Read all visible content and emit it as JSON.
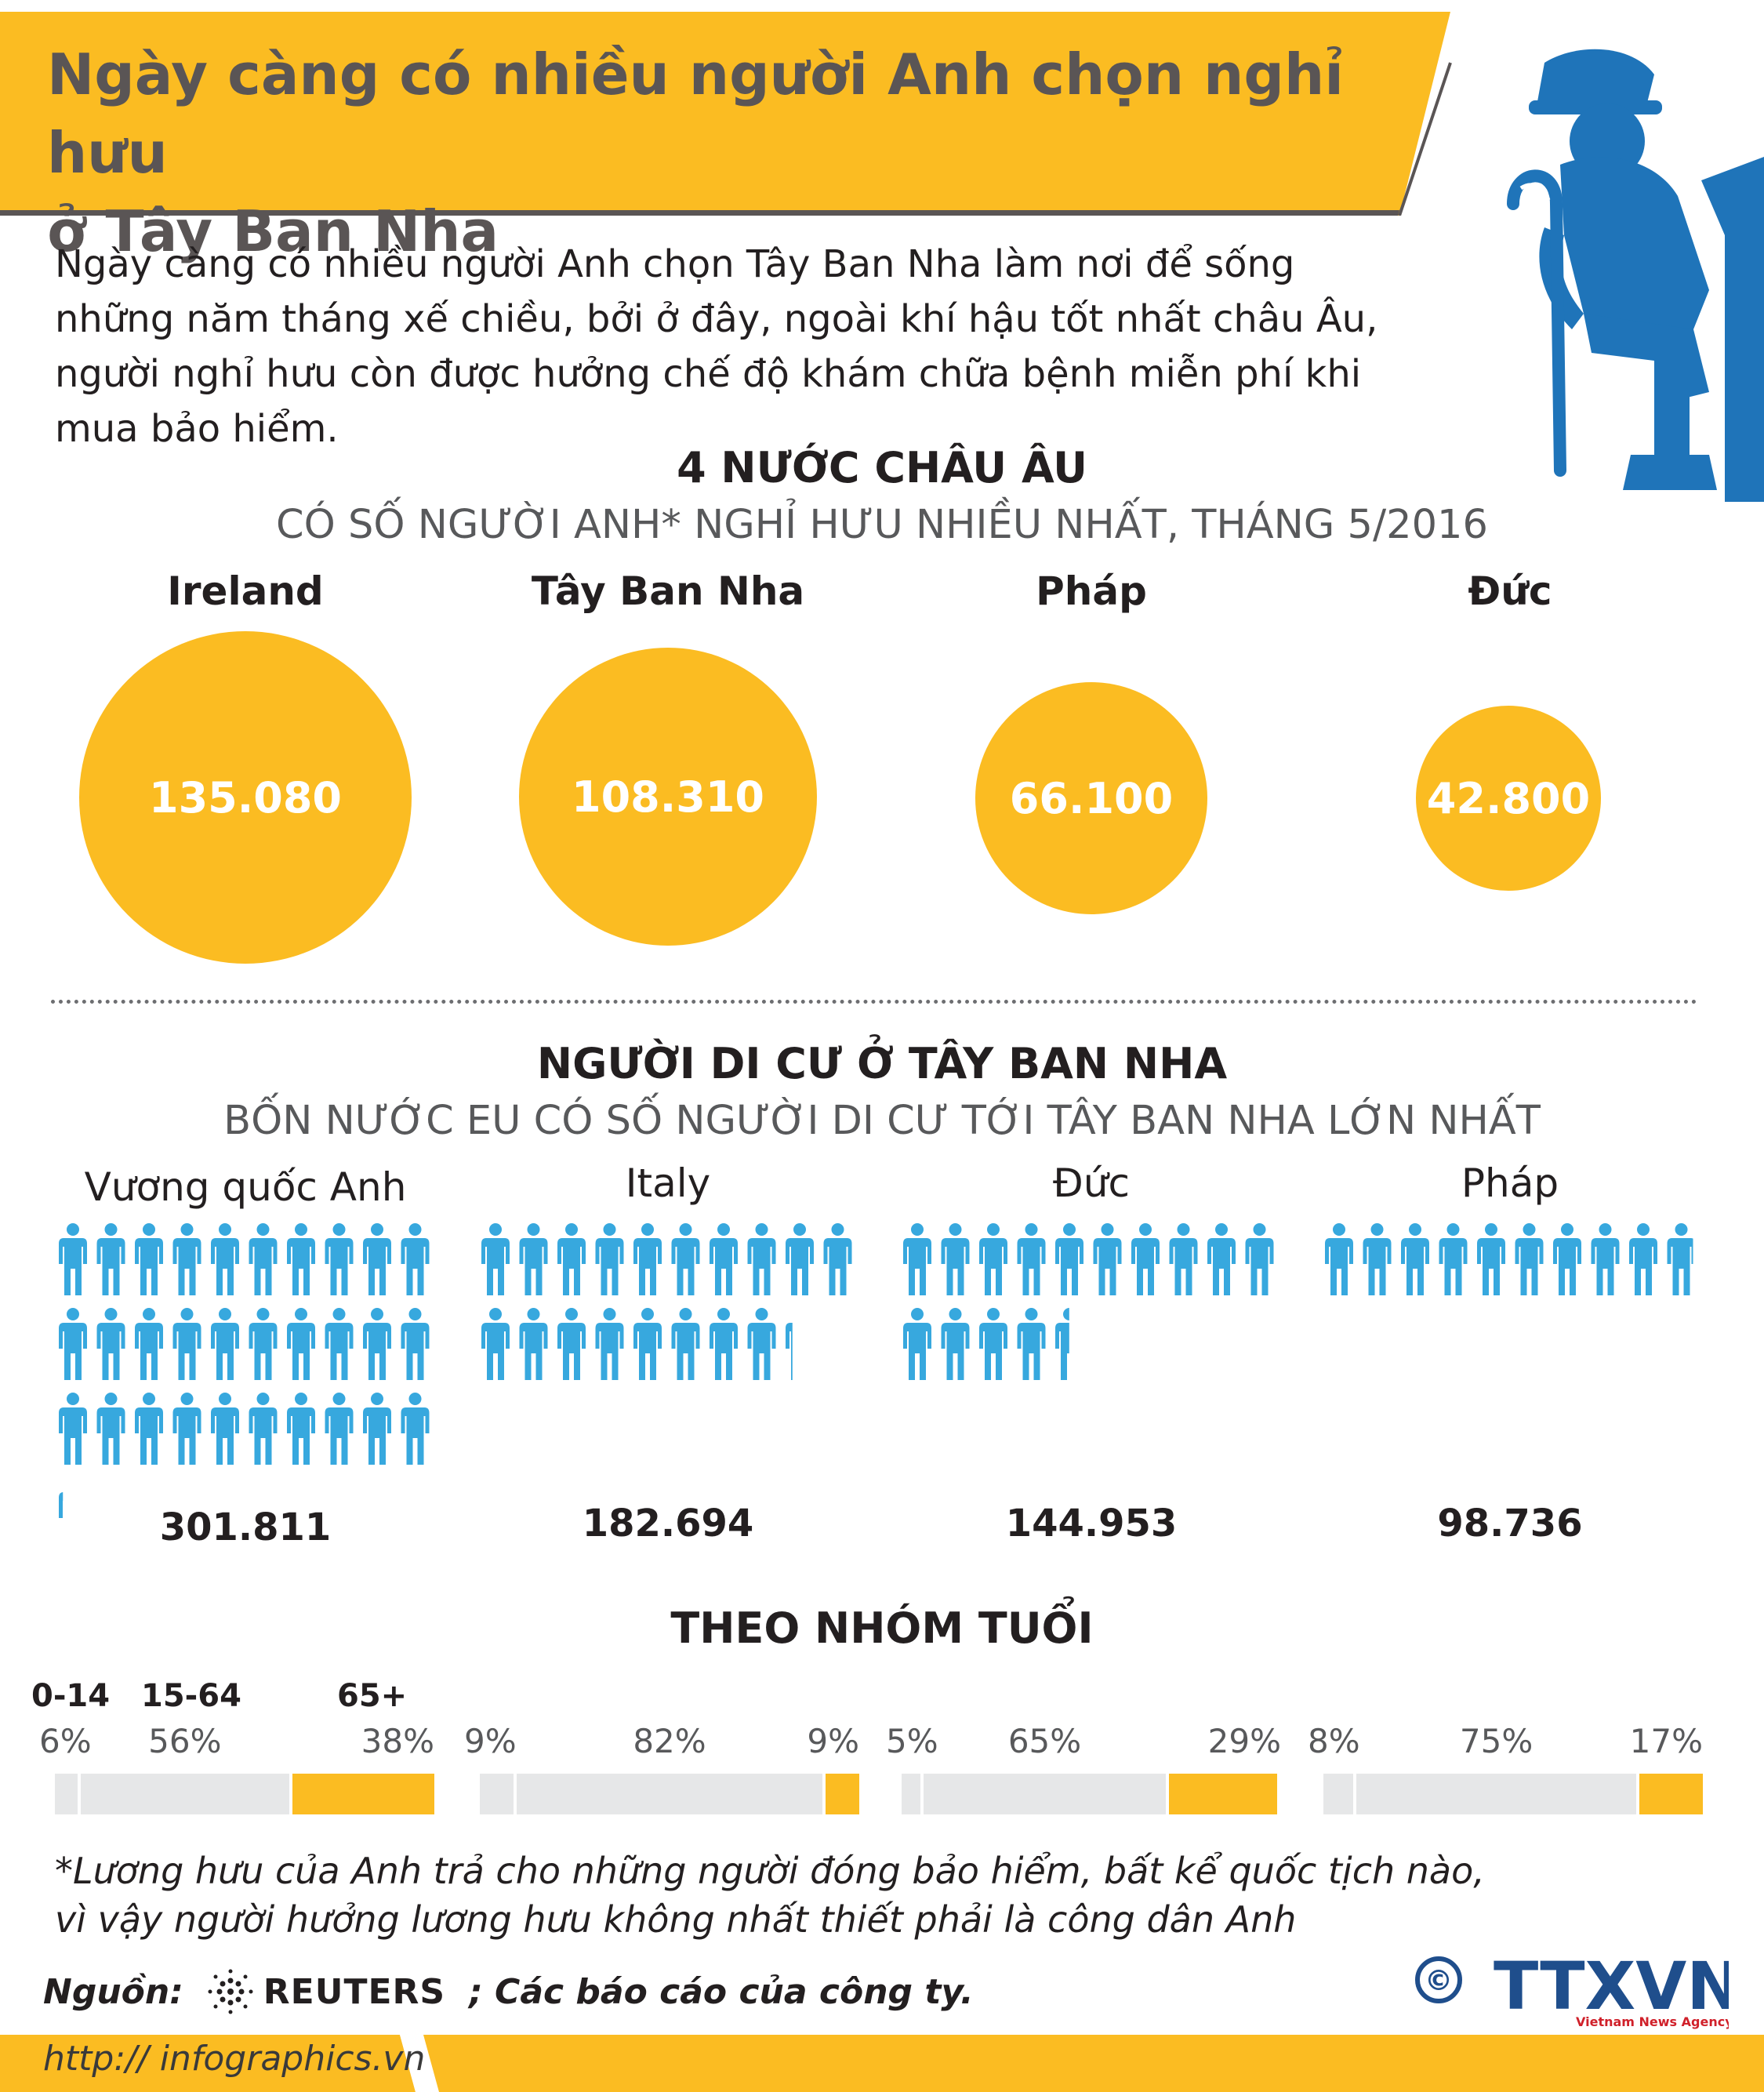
{
  "header": {
    "title_line1": "Ngày càng có nhiều người Anh chọn nghỉ hưu",
    "title_line2": "ở Tây Ban Nha",
    "intro": "Ngày càng có nhiều người Anh chọn Tây Ban Nha làm nơi để sống những năm tháng xế chiều, bởi ở đây, ngoài khí hậu tốt nhất châu Âu, người nghỉ hưu còn được hưởng chế độ khám chữa bệnh miễn phí khi mua bảo hiểm."
  },
  "section1": {
    "title": "4 NƯỚC CHÂU ÂU",
    "subtitle": "CÓ SỐ NGƯỜI ANH* NGHỈ HƯU NHIỀU NHẤT, THÁNG 5/2016",
    "countries": [
      {
        "name": "Ireland",
        "value": "135.080",
        "amount": 135080
      },
      {
        "name": "Tây Ban Nha",
        "value": "108.310",
        "amount": 108310
      },
      {
        "name": "Pháp",
        "value": "66.100",
        "amount": 66100
      },
      {
        "name": "Đức",
        "value": "42.800",
        "amount": 42800
      }
    ]
  },
  "section2": {
    "title": "NGƯỜI DI CƯ Ở TÂY BAN NHA",
    "subtitle": "BỐN NƯỚC EU CÓ SỐ NGƯỜI DI CƯ TỚI TÂY BAN NHA LỚN NHẤT",
    "countries": [
      {
        "name": "Vương quốc Anh",
        "value": "301.811",
        "amount": 301811
      },
      {
        "name": "Italy",
        "value": "182.694",
        "amount": 182694
      },
      {
        "name": "Đức",
        "value": "144.953",
        "amount": 144953
      },
      {
        "name": "Pháp",
        "value": "98.736",
        "amount": 98736
      }
    ]
  },
  "section3": {
    "title": "THEO NHÓM TUỔI",
    "age_groups": [
      "0-14",
      "15-64",
      "65+"
    ],
    "bars": [
      {
        "young": "6%",
        "work": "56%",
        "old": "38%",
        "y": 6,
        "w": 56,
        "o": 38
      },
      {
        "young": "9%",
        "work": "82%",
        "old": "9%",
        "y": 9,
        "w": 82,
        "o": 9
      },
      {
        "young": "5%",
        "work": "65%",
        "old": "29%",
        "y": 5,
        "w": 65,
        "o": 29
      },
      {
        "young": "8%",
        "work": "75%",
        "old": "17%",
        "y": 8,
        "w": 75,
        "o": 17
      }
    ]
  },
  "footer": {
    "footnote_line1": "*Lương hưu của Anh trả cho những người đóng bảo hiểm, bất kể quốc tịch nào,",
    "footnote_line2": "vì vậy người hưởng lương hưu không nhất thiết phải là công dân Anh",
    "source_label": "Nguồn:",
    "source_reuters": "REUTERS",
    "source_rest": "; Các báo cáo của công ty.",
    "url": "http:// infographics.vn",
    "copyright": "©",
    "logo_text": "TTXVN",
    "logo_sub": "Vietnam News Agency"
  },
  "colors": {
    "accent": "#fbbc22",
    "figure": "#1f74b9",
    "people": "#37a8de"
  }
}
